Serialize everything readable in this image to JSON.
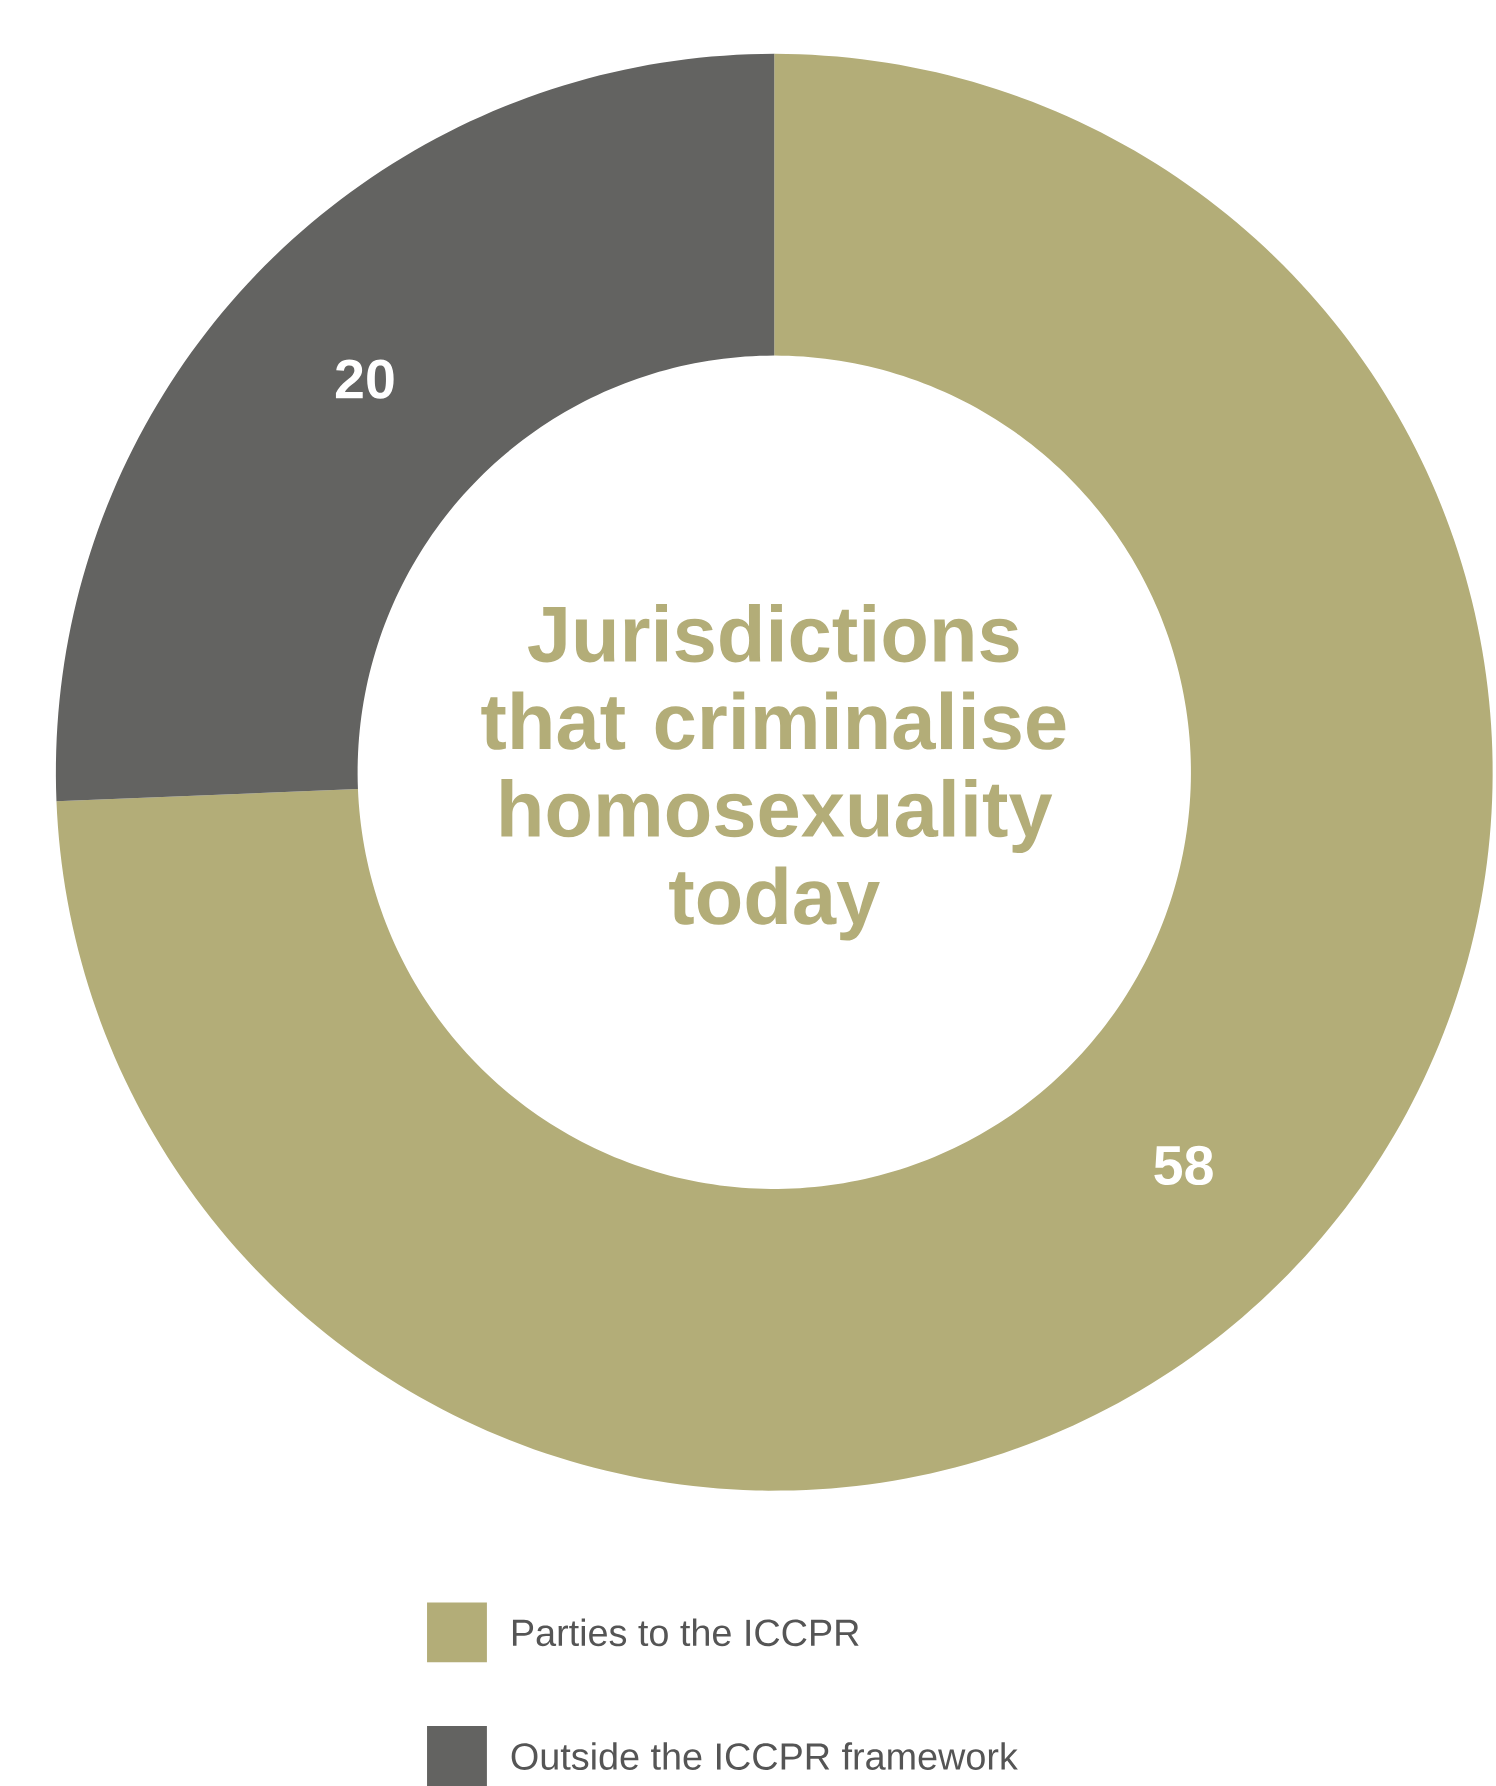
{
  "chart_data": {
    "type": "donut",
    "title": "Jurisdictions that criminalise homosexuality today",
    "categories": [
      "Parties to the ICCPR",
      "Outside the ICCPR framework"
    ],
    "values": [
      58,
      20
    ],
    "colors": [
      "#b3ad78",
      "#636361"
    ],
    "data_labels": true,
    "legend": "bottom"
  }
}
